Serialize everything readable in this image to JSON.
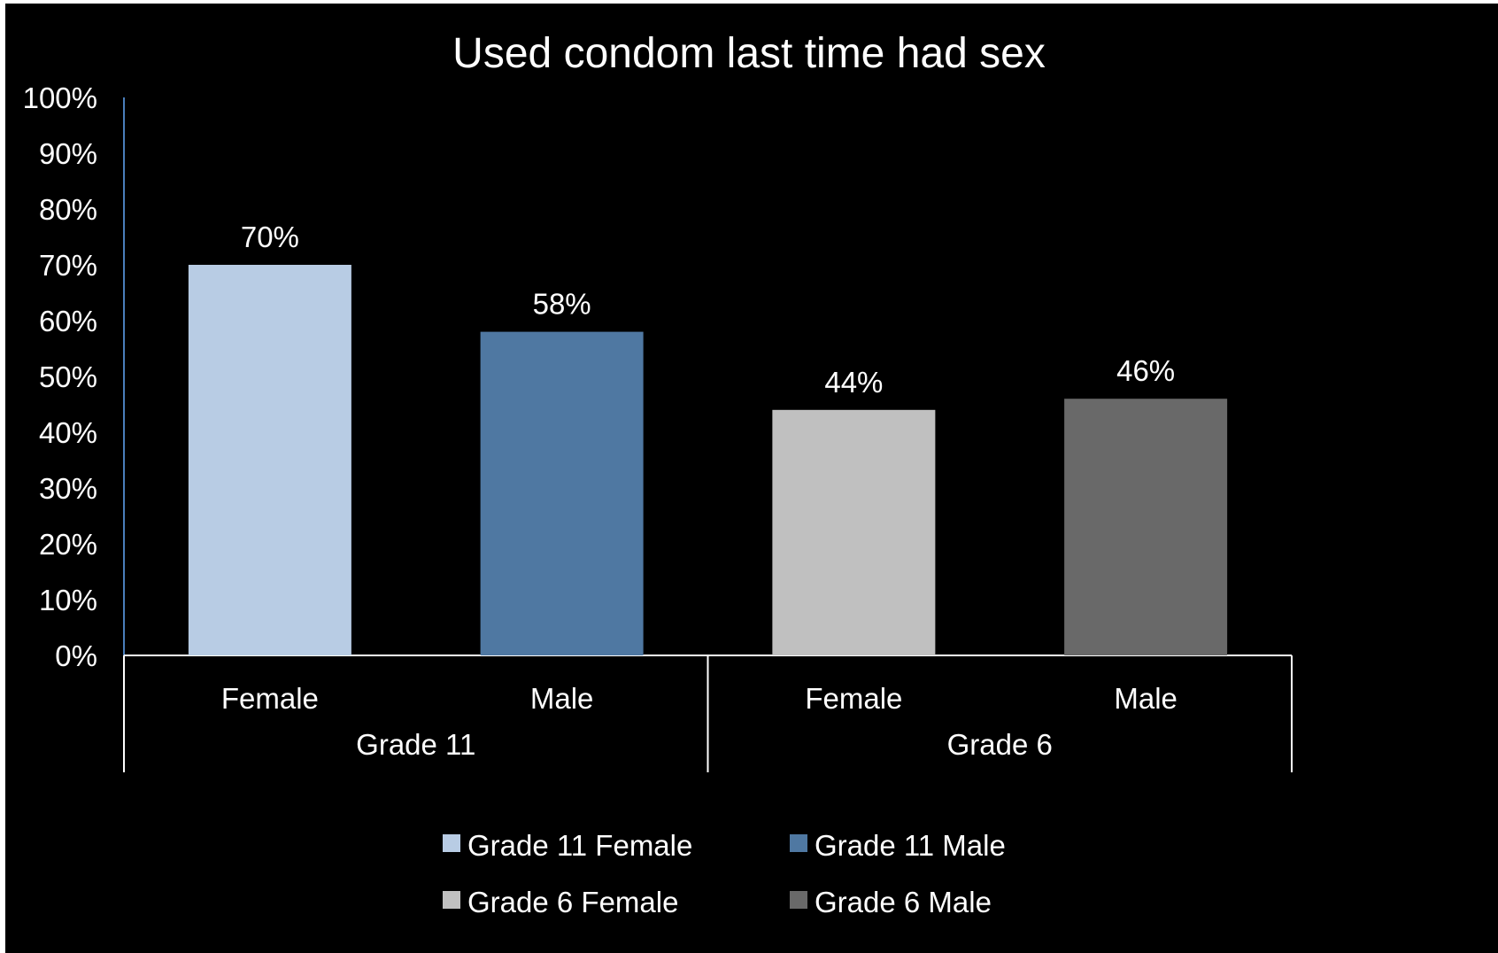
{
  "chart_data": {
    "type": "bar",
    "title": "Used condom last time had sex",
    "xlabel": "",
    "ylabel": "",
    "ylim": [
      0,
      100
    ],
    "y_tick_labels": [
      "0%",
      "10%",
      "20%",
      "30%",
      "40%",
      "50%",
      "60%",
      "70%",
      "80%",
      "90%",
      "100%"
    ],
    "y_ticks": [
      0,
      10,
      20,
      30,
      40,
      50,
      60,
      70,
      80,
      90,
      100
    ],
    "grid": false,
    "legend_position": "bottom",
    "groups": [
      {
        "label": "Grade 11",
        "categories": [
          "Female",
          "Male"
        ]
      },
      {
        "label": "Grade 6",
        "categories": [
          "Female",
          "Male"
        ]
      }
    ],
    "bars": [
      {
        "group": "Grade 11",
        "category": "Female",
        "value": 70,
        "data_label": "70%",
        "color": "#b8cce4"
      },
      {
        "group": "Grade 11",
        "category": "Male",
        "value": 58,
        "data_label": "58%",
        "color": "#4f78a2"
      },
      {
        "group": "Grade 6",
        "category": "Female",
        "value": 44,
        "data_label": "44%",
        "color": "#c0c0c0"
      },
      {
        "group": "Grade 6",
        "category": "Male",
        "value": 46,
        "data_label": "46%",
        "color": "#696969"
      }
    ],
    "legend": [
      {
        "name": "Grade 11 Female",
        "color": "#b8cce4"
      },
      {
        "name": "Grade 11 Male",
        "color": "#4f78a2"
      },
      {
        "name": "Grade 6 Female",
        "color": "#c0c0c0"
      },
      {
        "name": "Grade 6 Male",
        "color": "#696969"
      }
    ],
    "colors": {
      "background": "#000000",
      "text": "#ffffff",
      "axis_line": "#ffffff",
      "y_axis_line": "#4a7ebb"
    }
  }
}
